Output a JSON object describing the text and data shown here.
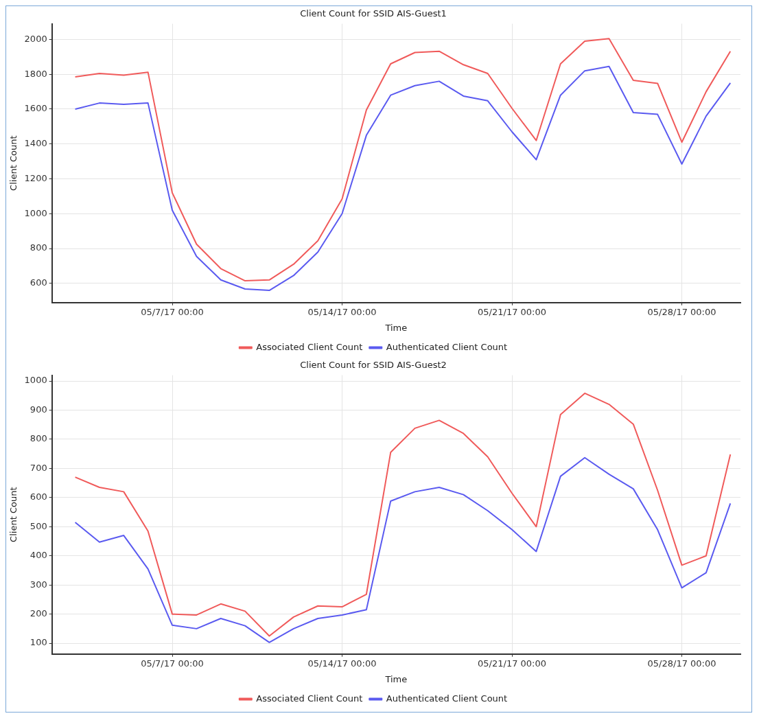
{
  "chart_data": [
    {
      "type": "line",
      "title": "Client Count for SSID AIS-Guest1",
      "xlabel": "Time",
      "ylabel": "Client Count",
      "x": [
        "--05-03T00:00",
        "--05-04T00:00",
        "--05-05T00:00",
        "--05-06T00:00",
        "--05-07T00:00",
        "--05-08T00:00",
        "--05-09T00:00",
        "--05-10T00:00",
        "--05-11T00:00",
        "--05-12T00:00",
        "--05-13T00:00",
        "--05-14T00:00",
        "--05-15T00:00",
        "--05-16T00:00",
        "--05-17T00:00",
        "--05-18T00:00",
        "--05-19T00:00",
        "--05-20T00:00",
        "--05-21T00:00",
        "--05-22T00:00",
        "--05-23T00:00",
        "--05-24T00:00",
        "--05-25T00:00",
        "--05-26T00:00",
        "--05-27T00:00",
        "--05-28T00:00",
        "--05-29T00:00",
        "--05-30T00:00"
      ],
      "series": [
        {
          "name": "Associated Client Count",
          "color": "#f05a5a",
          "values": [
            1785,
            1805,
            1795,
            1812,
            1120,
            825,
            685,
            615,
            620,
            710,
            845,
            1085,
            1595,
            1860,
            1925,
            1932,
            1855,
            1805,
            1605,
            1420,
            1860,
            1990,
            2005,
            1765,
            1748,
            1410,
            1700,
            1932
          ]
        },
        {
          "name": "Authenticated Client Count",
          "color": "#5a5af0",
          "values": [
            1600,
            1635,
            1628,
            1635,
            1020,
            755,
            620,
            568,
            560,
            645,
            780,
            1000,
            1450,
            1680,
            1735,
            1760,
            1675,
            1648,
            1470,
            1310,
            1680,
            1820,
            1845,
            1580,
            1570,
            1285,
            1560,
            1750
          ]
        }
      ],
      "xlim": [
        "--05-02T01:00",
        "--05-30T10:00"
      ],
      "xticks": [
        {
          "value": "--05-07T00:00",
          "label": "05/7/17 00:00"
        },
        {
          "value": "--05-14T00:00",
          "label": "05/14/17 00:00"
        },
        {
          "value": "--05-21T00:00",
          "label": "05/21/17 00:00"
        },
        {
          "value": "--05-28T00:00",
          "label": "05/28/17 00:00"
        }
      ],
      "ylim": [
        490,
        2090
      ],
      "yticks": [
        600,
        800,
        1000,
        1200,
        1400,
        1600,
        1800,
        2000
      ],
      "grid": true,
      "legend": "bottom",
      "marker": "none",
      "line_style": "solid"
    },
    {
      "type": "line",
      "title": "Client Count for SSID AIS-Guest2",
      "xlabel": "Time",
      "ylabel": "Client Count",
      "x": [
        "--05-03T00:00",
        "--05-04T00:00",
        "--05-05T00:00",
        "--05-06T00:00",
        "--05-07T00:00",
        "--05-08T00:00",
        "--05-09T00:00",
        "--05-10T00:00",
        "--05-11T00:00",
        "--05-12T00:00",
        "--05-13T00:00",
        "--05-14T00:00",
        "--05-15T00:00",
        "--05-16T00:00",
        "--05-17T00:00",
        "--05-18T00:00",
        "--05-19T00:00",
        "--05-20T00:00",
        "--05-21T00:00",
        "--05-22T00:00",
        "--05-23T00:00",
        "--05-24T00:00",
        "--05-25T00:00",
        "--05-26T00:00",
        "--05-27T00:00",
        "--05-28T00:00",
        "--05-29T00:00",
        "--05-30T00:00"
      ],
      "series": [
        {
          "name": "Associated Client Count",
          "color": "#f05a5a",
          "values": [
            670,
            635,
            620,
            485,
            200,
            197,
            235,
            210,
            125,
            190,
            228,
            225,
            268,
            755,
            838,
            865,
            820,
            740,
            615,
            500,
            885,
            958,
            920,
            852,
            625,
            368,
            400,
            748
          ]
        },
        {
          "name": "Authenticated Client Count",
          "color": "#5a5af0",
          "values": [
            515,
            447,
            470,
            355,
            162,
            150,
            185,
            160,
            103,
            150,
            185,
            197,
            215,
            588,
            620,
            635,
            610,
            555,
            490,
            415,
            673,
            737,
            680,
            630,
            490,
            290,
            342,
            580
          ]
        }
      ],
      "xlim": [
        "--05-02T01:00",
        "--05-30T10:00"
      ],
      "xticks": [
        {
          "value": "--05-07T00:00",
          "label": "05/7/17 00:00"
        },
        {
          "value": "--05-14T00:00",
          "label": "05/14/17 00:00"
        },
        {
          "value": "--05-21T00:00",
          "label": "05/21/17 00:00"
        },
        {
          "value": "--05-28T00:00",
          "label": "05/28/17 00:00"
        }
      ],
      "ylim": [
        63,
        1020
      ],
      "yticks": [
        100,
        200,
        300,
        400,
        500,
        600,
        700,
        800,
        900,
        1000
      ],
      "grid": true,
      "legend": "bottom",
      "marker": "none",
      "line_style": "solid"
    }
  ]
}
